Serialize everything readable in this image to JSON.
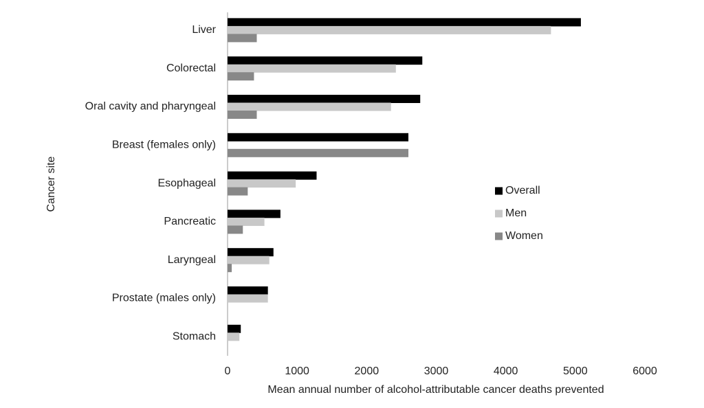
{
  "chart_data": {
    "type": "hbar",
    "x_label": "Mean annual number of alcohol-attributable cancer deaths prevented",
    "y_label": "Cancer site",
    "categories": [
      "Liver",
      "Colorectal",
      "Oral cavity and pharyngeal",
      "Breast (females only)",
      "Esophageal",
      "Pancreatic",
      "Laryngeal",
      "Prostate (males only)",
      "Stomach"
    ],
    "series": [
      {
        "name": "Overall",
        "color": "#000000",
        "values": [
          5080,
          2800,
          2770,
          2600,
          1280,
          760,
          660,
          580,
          190
        ]
      },
      {
        "name": "Men",
        "color": "#c8c8c8",
        "values": [
          4650,
          2420,
          2350,
          null,
          980,
          530,
          600,
          580,
          170
        ]
      },
      {
        "name": "Women",
        "color": "#888888",
        "values": [
          420,
          380,
          420,
          2600,
          290,
          220,
          60,
          null,
          null
        ]
      }
    ],
    "xlim": [
      0,
      6000
    ],
    "xticks": [
      0,
      1000,
      2000,
      3000,
      4000,
      5000,
      6000
    ],
    "grid": false,
    "legend": "right"
  }
}
